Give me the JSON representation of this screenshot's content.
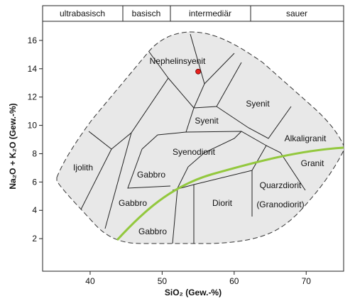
{
  "chart_data": {
    "type": "scatter",
    "header": [
      "ultrabasisch",
      "basisch",
      "intermediär",
      "sauer"
    ],
    "x_label": "SiO₂ (Gew.-%)",
    "y_label": "Na₂O + K₂O (Gew.-%)",
    "xlim": [
      33.4,
      75.2
    ],
    "xticks": [
      40,
      50,
      60,
      70
    ],
    "ylim": [
      -0.3,
      17.35
    ],
    "yticks": [
      2,
      4,
      6,
      8,
      10,
      12,
      14,
      16
    ],
    "x": [
      55
    ],
    "values": [
      13.8
    ],
    "color": "#e8201c",
    "annotations": [
      "Nephelinsyenit",
      "Syenit",
      "Syenit",
      "Alkaligranit",
      "Syenodiorit",
      "Ijolith",
      "Gabbro",
      "Granit",
      "Quarzdiorit",
      "Gabbro",
      "Diorit",
      "(Granodiorit)",
      "Gabbro"
    ]
  }
}
